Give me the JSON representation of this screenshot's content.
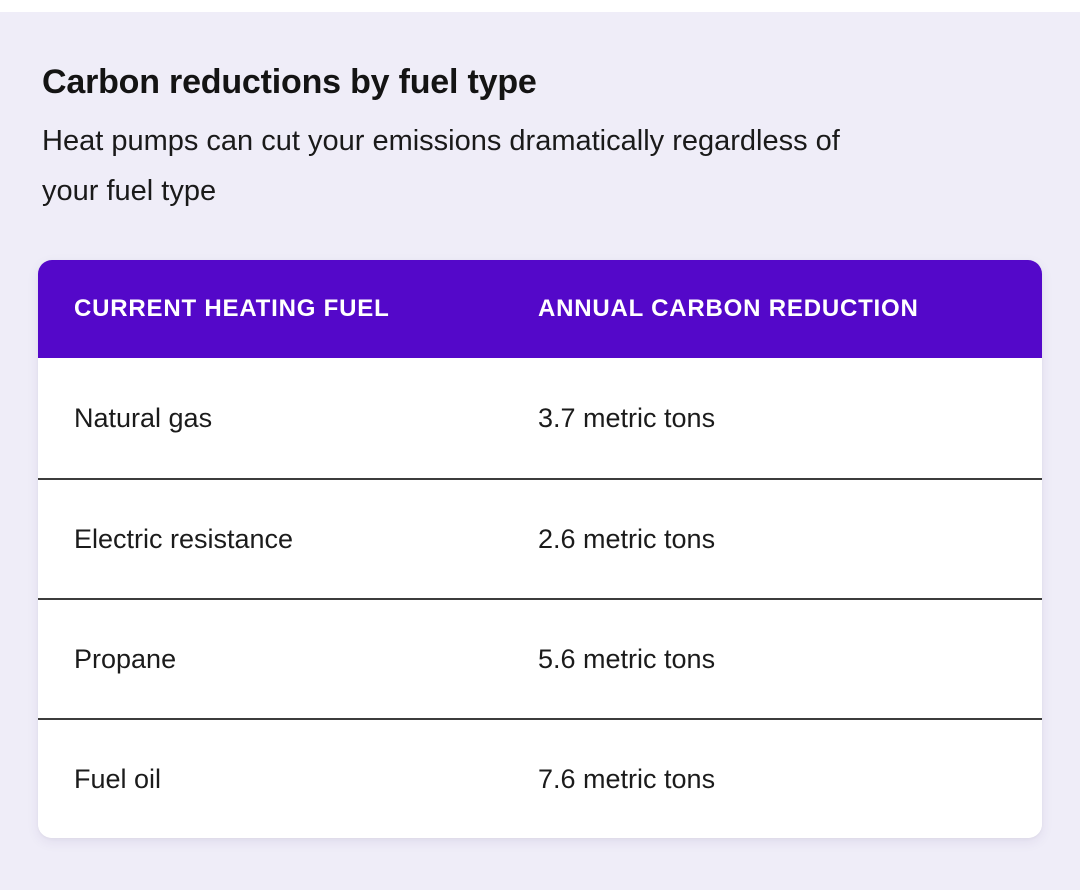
{
  "page": {
    "title": "Carbon reductions by fuel type",
    "subtitle": "Heat pumps can cut your emissions dramatically regardless of your fuel type",
    "subtitle_lines": [
      "Heat pumps can cut your emissions dramatically regardless of",
      "your fuel type"
    ]
  },
  "table": {
    "columns": [
      "CURRENT HEATING FUEL",
      "ANNUAL CARBON REDUCTION"
    ],
    "rows": [
      {
        "fuel": "Natural gas",
        "reduction": "3.7 metric tons"
      },
      {
        "fuel": "Electric resistance",
        "reduction": "2.6 metric tons"
      },
      {
        "fuel": "Propane",
        "reduction": "5.6 metric tons"
      },
      {
        "fuel": "Fuel oil",
        "reduction": "7.6 metric tons"
      }
    ]
  },
  "chart_data": {
    "type": "table",
    "title": "Carbon reductions by fuel type",
    "subtitle": "Heat pumps can cut your emissions dramatically regardless of your fuel type",
    "columns": [
      "CURRENT HEATING FUEL",
      "ANNUAL CARBON REDUCTION"
    ],
    "categories": [
      "Natural gas",
      "Electric resistance",
      "Propane",
      "Fuel oil"
    ],
    "values": [
      3.7,
      2.6,
      5.6,
      7.6
    ],
    "unit": "metric tons"
  },
  "colors": {
    "page_background": "#EFEDF8",
    "top_strip": "#FFFFFF",
    "card_background": "#FFFFFF",
    "header_background": "#5408C9",
    "header_text": "#FFFFFF",
    "body_text": "#1A1A1A",
    "divider": "#3C3C3C"
  }
}
